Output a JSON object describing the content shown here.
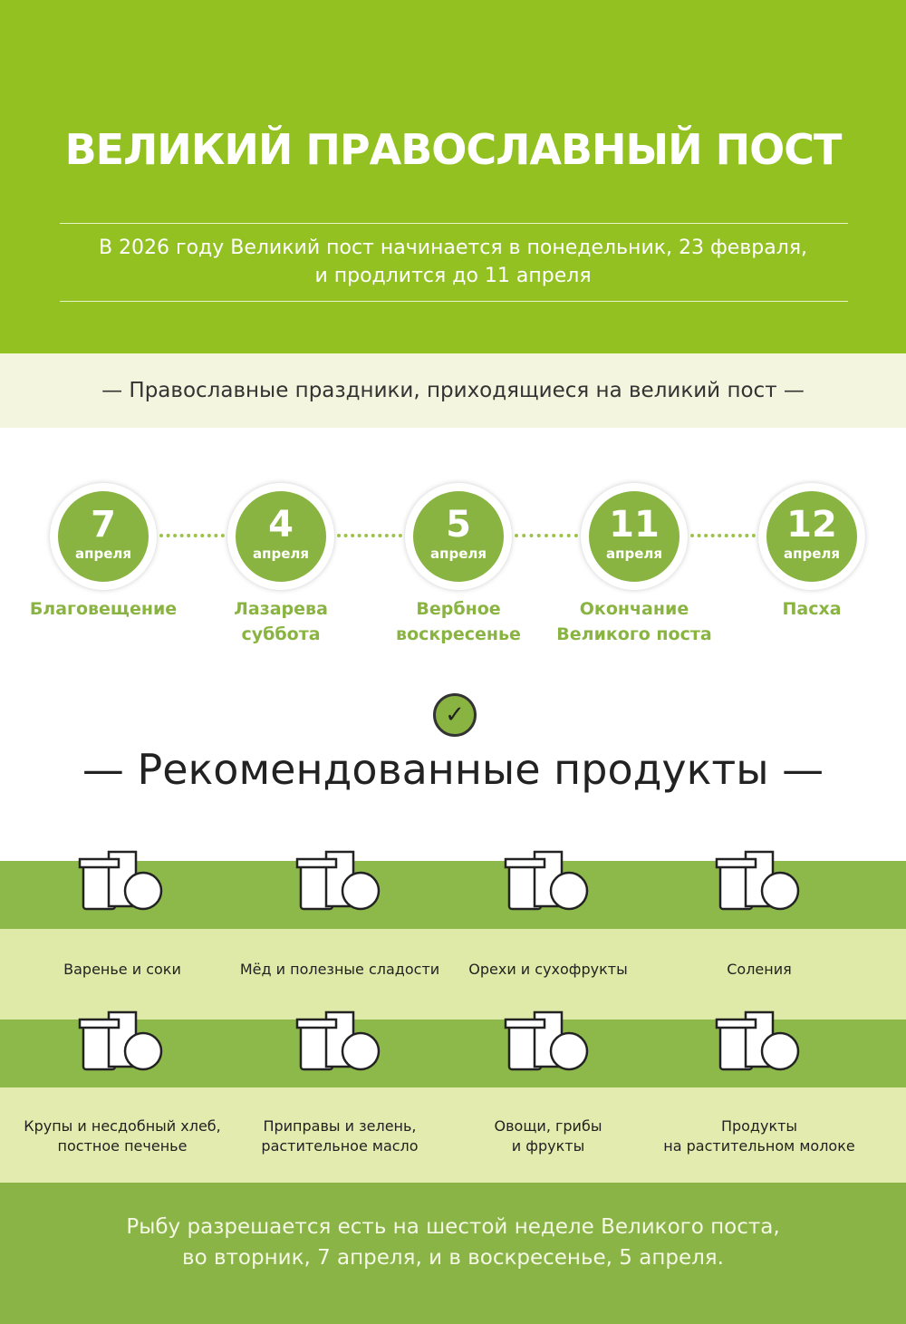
{
  "header": {
    "title": "ВЕЛИКИЙ ПРАВОСЛАВНЫЙ ПОСТ",
    "subtitle_line1": "В 2026 году Великий пост начинается в понедельник, 23 февраля,",
    "subtitle_line2": "и продлится до 11 апреля"
  },
  "holidays_heading": "— Православные праздники, приходящиеся на великий пост —",
  "holidays": [
    {
      "day": "7",
      "month": "апреля",
      "name1": "Благовещение",
      "name2": ""
    },
    {
      "day": "4",
      "month": "апреля",
      "name1": "Лазарева",
      "name2": "суббота"
    },
    {
      "day": "5",
      "month": "апреля",
      "name1": "Вербное",
      "name2": "воскресенье"
    },
    {
      "day": "11",
      "month": "апреля",
      "name1": "Окончание",
      "name2": "Великого поста"
    },
    {
      "day": "12",
      "month": "апреля",
      "name1": "Пасха",
      "name2": ""
    }
  ],
  "check_icon": "✓",
  "products_heading": "— Рекомендованные продукты —",
  "products": [
    {
      "l1": "Варенье и соки",
      "l2": "",
      "icon": "jam-juice-icon"
    },
    {
      "l1": "Мёд и полезные сладости",
      "l2": "",
      "icon": "honey-icon"
    },
    {
      "l1": "Орехи и сухофрукты",
      "l2": "",
      "icon": "nuts-icon"
    },
    {
      "l1": "Соления",
      "l2": "",
      "icon": "pickles-icon"
    },
    {
      "l1": "Крупы и несдобный хлеб,",
      "l2": "постное печенье",
      "icon": "bread-icon"
    },
    {
      "l1": "Приправы и зелень,",
      "l2": "растительное масло",
      "icon": "spices-oil-icon"
    },
    {
      "l1": "Овощи, грибы",
      "l2": "и фрукты",
      "icon": "vegetables-icon"
    },
    {
      "l1": "Продукты",
      "l2": "на растительном молоке",
      "icon": "plant-milk-icon"
    }
  ],
  "footer": {
    "line1": "Рыбу разрешается есть на шестой неделе Великого поста,",
    "line2": "во вторник, 7 апреля, и в воскресенье, 5 апреля."
  },
  "colors": {
    "header_green": "#92c121",
    "accent_green": "#8ab442",
    "light_band": "#f4f5de"
  }
}
